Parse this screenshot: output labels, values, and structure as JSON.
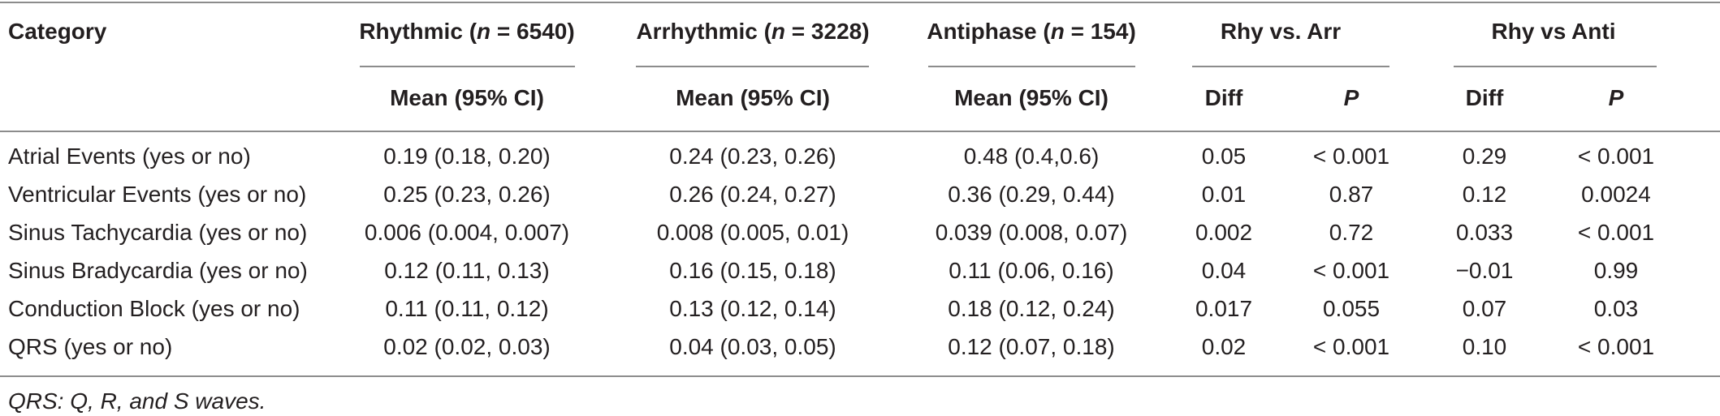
{
  "header": {
    "category": "Category",
    "groups": [
      {
        "pre": "Rhythmic (",
        "n": "n",
        "post": " = 6540)"
      },
      {
        "pre": "Arrhythmic (",
        "n": "n",
        "post": " = 3228)"
      },
      {
        "pre": "Antiphase (",
        "n": "n",
        "post": " = 154)"
      },
      {
        "label": "Rhy vs. Arr"
      },
      {
        "label": "Rhy vs Anti"
      }
    ],
    "sub": {
      "mean1": "Mean (95% CI)",
      "mean2": "Mean (95% CI)",
      "mean3": "Mean (95% CI)",
      "diff1": "Diff",
      "p1": "P",
      "diff2": "Diff",
      "p2": "P"
    }
  },
  "rows": [
    [
      "Atrial Events (yes or no)",
      "0.19 (0.18, 0.20)",
      "0.24 (0.23, 0.26)",
      "0.48 (0.4,0.6)",
      "0.05",
      "< 0.001",
      "0.29",
      "< 0.001"
    ],
    [
      "Ventricular Events (yes or no)",
      "0.25 (0.23, 0.26)",
      "0.26 (0.24, 0.27)",
      "0.36 (0.29, 0.44)",
      "0.01",
      "0.87",
      "0.12",
      "0.0024"
    ],
    [
      "Sinus Tachycardia (yes or no)",
      "0.006 (0.004, 0.007)",
      "0.008 (0.005, 0.01)",
      "0.039 (0.008, 0.07)",
      "0.002",
      "0.72",
      "0.033",
      "< 0.001"
    ],
    [
      "Sinus Bradycardia (yes or no)",
      "0.12 (0.11, 0.13)",
      "0.16 (0.15, 0.18)",
      "0.11 (0.06, 0.16)",
      "0.04",
      "< 0.001",
      "−0.01",
      "0.99"
    ],
    [
      "Conduction Block (yes or no)",
      "0.11 (0.11, 0.12)",
      "0.13 (0.12, 0.14)",
      "0.18 (0.12, 0.24)",
      "0.017",
      "0.055",
      "0.07",
      "0.03"
    ],
    [
      "QRS (yes or no)",
      "0.02 (0.02, 0.03)",
      "0.04 (0.03, 0.05)",
      "0.12 (0.07, 0.18)",
      "0.02",
      "< 0.001",
      "0.10",
      "< 0.001"
    ]
  ],
  "footnote": "QRS: Q, R, and S waves."
}
